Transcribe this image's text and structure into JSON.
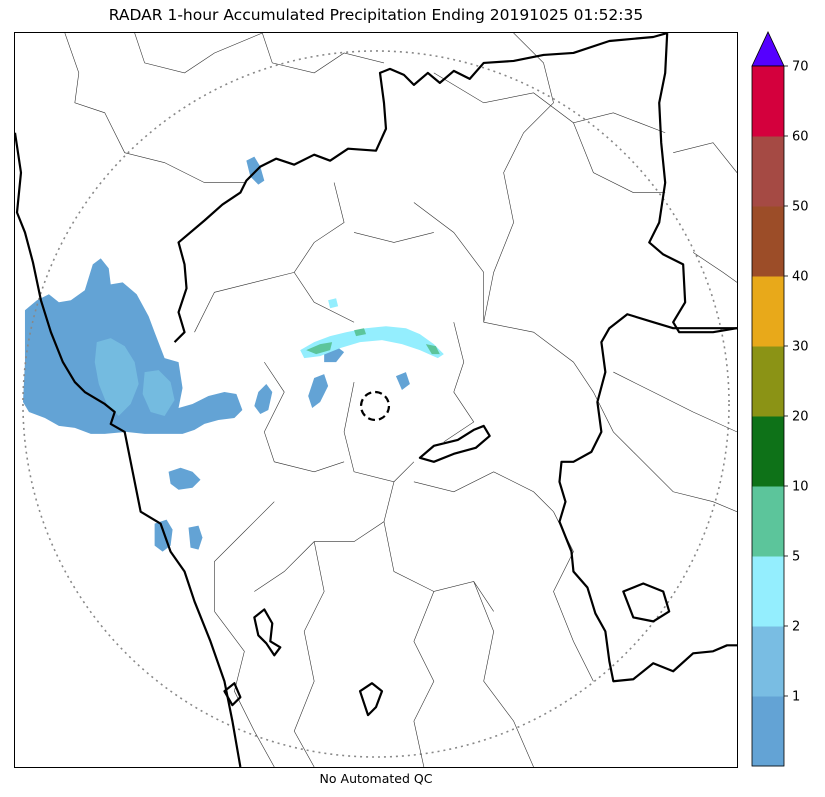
{
  "title": "RADAR 1-hour Accumulated Precipitation Ending 20191025 01:52:35",
  "subtitle": "No Automated QC",
  "colorbar": {
    "ticks": [
      "1",
      "2",
      "5",
      "10",
      "20",
      "30",
      "40",
      "50",
      "60",
      "70"
    ],
    "bins": [
      {
        "color": "#63a3d5"
      },
      {
        "color": "#79bde3"
      },
      {
        "color": "#94eefe"
      },
      {
        "color": "#5cc59b"
      },
      {
        "color": "#0e7218"
      },
      {
        "color": "#8b9315"
      },
      {
        "color": "#e8a91a"
      },
      {
        "color": "#9c4d28"
      },
      {
        "color": "#a54a44"
      },
      {
        "color": "#d4003d"
      }
    ],
    "extend_color": "#5500ff"
  },
  "map": {
    "range_ring_color": "#888888",
    "precip_colors": {
      "light": "#63a3d5",
      "medium": "#79c3e3",
      "cyan": "#94eefe",
      "teal": "#5cc59b"
    }
  }
}
